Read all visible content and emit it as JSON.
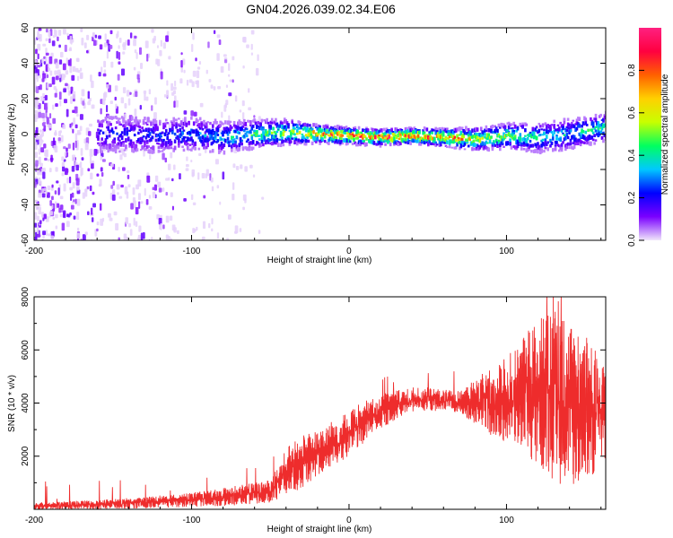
{
  "title": "GN04.2026.039.02.34.E06",
  "chart_data": [
    {
      "type": "heatmap",
      "name": "spectrogram",
      "xlabel": "Height of straight line (km)",
      "ylabel": "Frequency (Hz)",
      "xlim": [
        -200,
        163
      ],
      "ylim": [
        -60,
        60
      ],
      "xticks": [
        -200,
        -100,
        0,
        100
      ],
      "yticks": [
        -60,
        -40,
        -20,
        0,
        20,
        40,
        60
      ],
      "colorbar": {
        "label": "Normalized spectral amplitude",
        "range": [
          0.0,
          1.0
        ],
        "ticks": [
          0.0,
          0.2,
          0.4,
          0.6,
          0.8
        ],
        "colors": [
          "#f0e6fa",
          "#7a00ff",
          "#0000ff",
          "#00c8ff",
          "#00ff60",
          "#c8ff00",
          "#ffd000",
          "#ff6000",
          "#ff0040",
          "#ff2080"
        ]
      },
      "ridge": [
        {
          "x": -155,
          "f": 0,
          "amp": 0.25
        },
        {
          "x": -120,
          "f": -1,
          "amp": 0.3
        },
        {
          "x": -100,
          "f": 0,
          "amp": 0.35
        },
        {
          "x": -80,
          "f": -2,
          "amp": 0.4
        },
        {
          "x": -60,
          "f": 0,
          "amp": 0.5
        },
        {
          "x": -40,
          "f": 1,
          "amp": 0.6
        },
        {
          "x": -20,
          "f": 0,
          "amp": 0.85
        },
        {
          "x": 0,
          "f": -1,
          "amp": 0.9
        },
        {
          "x": 20,
          "f": -2,
          "amp": 0.92
        },
        {
          "x": 40,
          "f": -1,
          "amp": 0.95
        },
        {
          "x": 60,
          "f": -2,
          "amp": 0.85
        },
        {
          "x": 80,
          "f": -3,
          "amp": 0.7
        },
        {
          "x": 100,
          "f": -1,
          "amp": 0.6
        },
        {
          "x": 120,
          "f": -2,
          "amp": 0.45
        },
        {
          "x": 140,
          "f": 0,
          "amp": 0.4
        },
        {
          "x": 163,
          "f": 4,
          "amp": 0.5
        }
      ]
    },
    {
      "type": "line",
      "name": "snr",
      "xlabel": "Height of straight line (km)",
      "ylabel": "SNR (10 * v/v)",
      "xlim": [
        -200,
        163
      ],
      "ylim": [
        0,
        8000
      ],
      "xticks": [
        -200,
        -100,
        0,
        100
      ],
      "yticks": [
        2000,
        4000,
        6000,
        8000
      ],
      "color": "#ee2c2c",
      "envelope": {
        "x": [
          -200,
          -160,
          -120,
          -90,
          -70,
          -50,
          -40,
          -30,
          -20,
          -10,
          0,
          10,
          20,
          30,
          40,
          50,
          60,
          70,
          80,
          90,
          100,
          110,
          120,
          130,
          140,
          150,
          163
        ],
        "lower": [
          0,
          0,
          50,
          100,
          150,
          250,
          500,
          800,
          1200,
          1600,
          2000,
          2500,
          3000,
          3400,
          3600,
          3700,
          3700,
          3600,
          3200,
          2800,
          2500,
          2300,
          1600,
          1000,
          800,
          1000,
          1500
        ],
        "upper": [
          250,
          350,
          500,
          700,
          900,
          1100,
          2300,
          2800,
          3000,
          3400,
          3700,
          4100,
          4400,
          4500,
          4600,
          4600,
          4500,
          4500,
          5000,
          5300,
          5700,
          6500,
          7200,
          7500,
          7200,
          6500,
          5700
        ]
      }
    }
  ]
}
